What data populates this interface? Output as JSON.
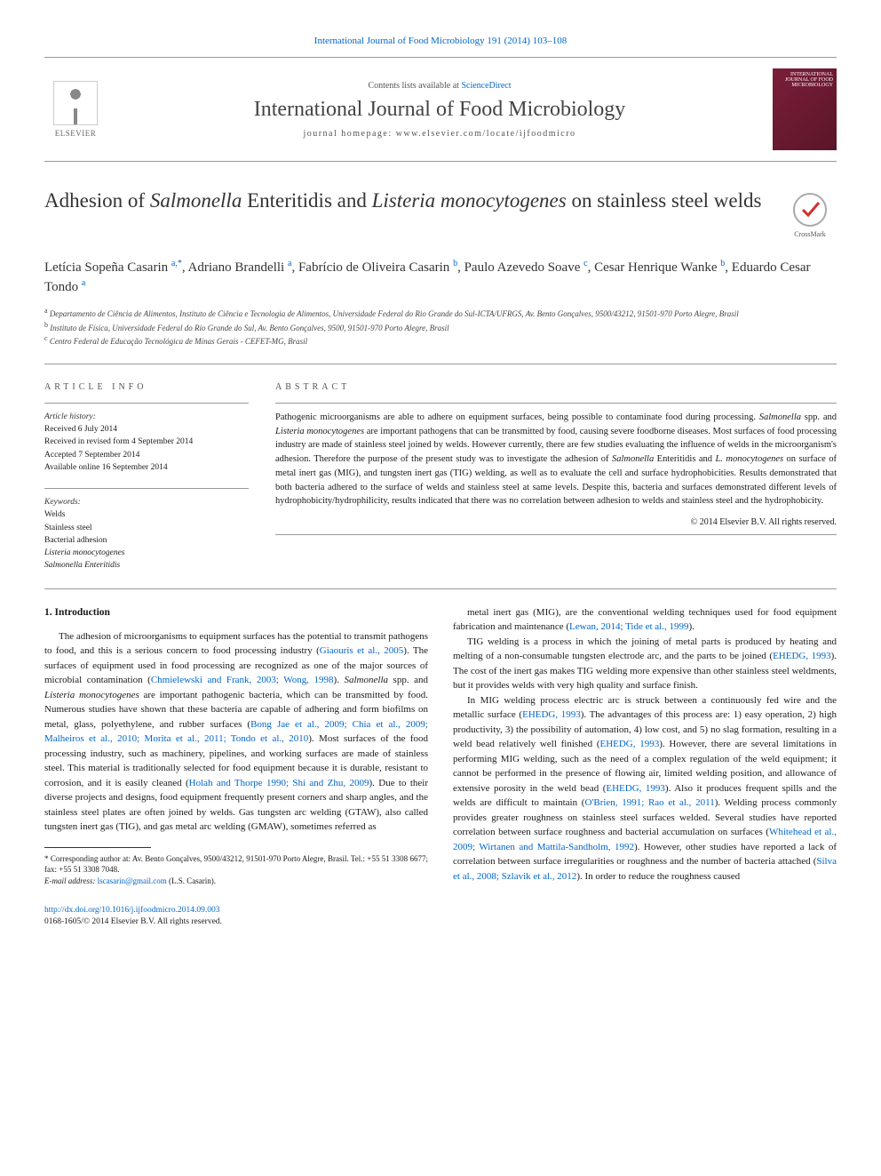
{
  "top_citation_link": "International Journal of Food Microbiology 191 (2014) 103–108",
  "header": {
    "contents_prefix": "Contents lists available at ",
    "contents_link": "ScienceDirect",
    "journal_name": "International Journal of Food Microbiology",
    "homepage_prefix": "journal homepage: ",
    "homepage_url": "www.elsevier.com/locate/ijfoodmicro",
    "elsevier_label": "ELSEVIER",
    "cover_label_top": "INTERNATIONAL JOURNAL OF FOOD",
    "cover_label_main": "MICROBIOLOGY"
  },
  "crossmark_label": "CrossMark",
  "title_html": "Adhesion of <em>Salmonella</em> Enteritidis and <em>Listeria monocytogenes</em> on stainless steel welds",
  "authors_html": "Letícia Sopeña Casarin <sup>a,</sup><a href='#'><sup>*</sup></a>, Adriano Brandelli <sup>a</sup>, Fabrício de Oliveira Casarin <sup>b</sup>, Paulo Azevedo Soave <sup>c</sup>, Cesar Henrique Wanke <sup>b</sup>, Eduardo Cesar Tondo <sup>a</sup>",
  "affiliations": [
    "a Departamento de Ciência de Alimentos, Instituto de Ciência e Tecnologia de Alimentos, Universidade Federal do Rio Grande do Sul-ICTA/UFRGS, Av. Bento Gonçalves, 9500/43212, 91501-970 Porto Alegre, Brasil",
    "b Instituto de Física, Universidade Federal do Rio Grande do Sul, Av. Bento Gonçalves, 9500, 91501-970 Porto Alegre, Brasil",
    "c Centro Federal de Educação Tecnológica de Minas Gerais - CEFET-MG, Brasil"
  ],
  "article_info": {
    "heading": "ARTICLE INFO",
    "history_label": "Article history:",
    "history": [
      "Received 6 July 2014",
      "Received in revised form 4 September 2014",
      "Accepted 7 September 2014",
      "Available online 16 September 2014"
    ],
    "keywords_label": "Keywords:",
    "keywords": [
      "Welds",
      "Stainless steel",
      "Bacterial adhesion",
      "Listeria monocytogenes",
      "Salmonella Enteritidis"
    ]
  },
  "abstract": {
    "heading": "ABSTRACT",
    "text_html": "Pathogenic microorganisms are able to adhere on equipment surfaces, being possible to contaminate food during processing. <em>Salmonella</em> spp. and <em>Listeria monocytogenes</em> are important pathogens that can be transmitted by food, causing severe foodborne diseases. Most surfaces of food processing industry are made of stainless steel joined by welds. However currently, there are few studies evaluating the influence of welds in the microorganism's adhesion. Therefore the purpose of the present study was to investigate the adhesion of <em>Salmonella</em> Enteritidis and <em>L. monocytogenes</em> on surface of metal inert gas (MIG), and tungsten inert gas (TIG) welding, as well as to evaluate the cell and surface hydrophobicities. Results demonstrated that both bacteria adhered to the surface of welds and stainless steel at same levels. Despite this, bacteria and surfaces demonstrated different levels of hydrophobicity/hydrophilicity, results indicated that there was no correlation between adhesion to welds and stainless steel and the hydrophobicity.",
    "copyright": "© 2014 Elsevier B.V. All rights reserved."
  },
  "section1_heading": "1. Introduction",
  "col_left_html": "The adhesion of microorganisms to equipment surfaces has the potential to transmit pathogens to food, and this is a serious concern to food processing industry (<a href='#'>Giaouris et al., 2005</a>). The surfaces of equipment used in food processing are recognized as one of the major sources of microbial contamination (<a href='#'>Chmielewski and Frank, 2003; Wong, 1998</a>). <em>Salmonella</em> spp. and <em>Listeria monocytogenes</em> are important pathogenic bacteria, which can be transmitted by food. Numerous studies have shown that these bacteria are capable of adhering and form biofilms on metal, glass, polyethylene, and rubber surfaces (<a href='#'>Bong Jae et al., 2009; Chia et al., 2009; Malheiros et al., 2010; Morita et al., 2011; Tondo et al., 2010</a>). Most surfaces of the food processing industry, such as machinery, pipelines, and working surfaces are made of stainless steel. This material is traditionally selected for food equipment because it is durable, resistant to corrosion, and it is easily cleaned (<a href='#'>Holah and Thorpe 1990; Shi and Zhu, 2009</a>). Due to their diverse projects and designs, food equipment frequently present corners and sharp angles, and the stainless steel plates are often joined by welds. Gas tungsten arc welding (GTAW), also called tungsten inert gas (TIG), and gas metal arc welding (GMAW), sometimes referred as",
  "col_right_p1_html": "metal inert gas (MIG), are the conventional welding techniques used for food equipment fabrication and maintenance (<a href='#'>Lewan, 2014; Tide et al., 1999</a>).",
  "col_right_p2_html": "TIG welding is a process in which the joining of metal parts is produced by heating and melting of a non-consumable tungsten electrode arc, and the parts to be joined (<a href='#'>EHEDG, 1993</a>). The cost of the inert gas makes TIG welding more expensive than other stainless steel weldments, but it provides welds with very high quality and surface finish.",
  "col_right_p3_html": "In MIG welding process electric arc is struck between a continuously fed wire and the metallic surface (<a href='#'>EHEDG, 1993</a>). The advantages of this process are: 1) easy operation, 2) high productivity, 3) the possibility of automation, 4) low cost, and 5) no slag formation, resulting in a weld bead relatively well finished (<a href='#'>EHEDG, 1993</a>). However, there are several limitations in performing MIG welding, such as the need of a complex regulation of the weld equipment; it cannot be performed in the presence of flowing air, limited welding position, and allowance of extensive porosity in the weld bead (<a href='#'>EHEDG, 1993</a>). Also it produces frequent spills and the welds are difficult to maintain (<a href='#'>O'Brien, 1991; Rao et al., 2011</a>). Welding process commonly provides greater roughness on stainless steel surfaces welded. Several studies have reported correlation between surface roughness and bacterial accumulation on surfaces (<a href='#'>Whitehead et al., 2009; Wirtanen and Mattila-Sandholm, 1992</a>). However, other studies have reported a lack of correlation between surface irregularities or roughness and the number of bacteria attached (<a href='#'>Silva et al., 2008; Szlavik et al., 2012</a>). In order to reduce the roughness caused",
  "footnotes": {
    "corr_html": "* Corresponding author at: Av. Bento Gonçalves, 9500/43212, 91501-970 Porto Alegre, Brasil. Tel.: +55 51 3308 6677; fax: +55 51 3308 7048.",
    "email_label": "E-mail address:",
    "email": "lscasarin@gmail.com",
    "email_who": "(L.S. Casarin)."
  },
  "footer": {
    "doi": "http://dx.doi.org/10.1016/j.ijfoodmicro.2014.09.003",
    "issn_line": "0168-1605/© 2014 Elsevier B.V. All rights reserved."
  },
  "colors": {
    "link": "#0066cc",
    "text": "#1a1a1a",
    "cover_bg": "#7b1e3a",
    "elsevier_orange": "#e37222"
  }
}
